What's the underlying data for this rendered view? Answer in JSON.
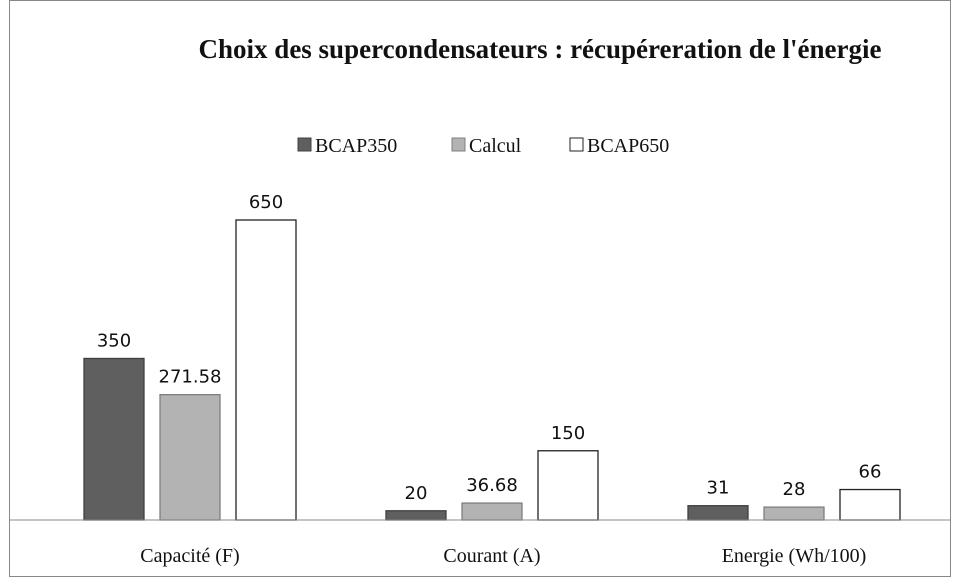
{
  "chart_data": {
    "type": "bar",
    "title": "Choix des supercondensateurs : récupéreration de l'énergie",
    "categories": [
      "Capacité (F)",
      "Courant (A)",
      "Energie (Wh/100)"
    ],
    "series": [
      {
        "name": "BCAP350",
        "color": "#5f5f5f",
        "values": [
          350,
          20,
          31
        ]
      },
      {
        "name": "Calcul",
        "color": "#b3b3b3",
        "values": [
          271.58,
          36.68,
          28
        ]
      },
      {
        "name": "BCAP650",
        "color": "#ffffff",
        "values": [
          650,
          150,
          66
        ]
      }
    ],
    "legend": "top"
  }
}
